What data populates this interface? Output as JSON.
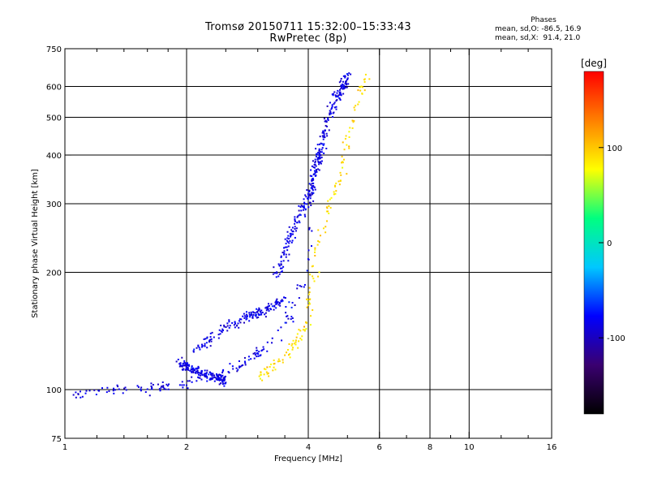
{
  "header": {
    "title_line1": "Tromsø 20150711 15:32:00–15:33:43",
    "title_line2": "RwPretec (8p)"
  },
  "phases": {
    "title": "Phases",
    "line_o": "mean, sd,O: -86.5, 16.9",
    "line_x": "mean, sd,X:  91.4, 21.0"
  },
  "colorbar": {
    "label": "[deg]",
    "ticks": [
      {
        "value": 100,
        "text": "100"
      },
      {
        "value": 0,
        "text": "0"
      },
      {
        "value": -100,
        "text": "-100"
      }
    ],
    "range": [
      -180,
      180
    ],
    "stops": [
      "#000000",
      "#3a0070",
      "#0000ff",
      "#00c8ff",
      "#00ff80",
      "#ffff00",
      "#ff8000",
      "#ff0000"
    ]
  },
  "chart_data": {
    "type": "scatter",
    "title": "Tromsø 20150711 15:32:00–15:33:43",
    "subtitle": "RwPretec (8p)",
    "xlabel": "Frequency [MHz]",
    "ylabel": "Stationary phase Virtual Height [km]",
    "x_scale": "log",
    "y_scale": "log",
    "xlim": [
      1,
      16
    ],
    "ylim": [
      75,
      750
    ],
    "x_ticks": [
      1,
      2,
      4,
      6,
      8,
      10,
      16
    ],
    "x_tick_labels": [
      "1",
      "2",
      "4",
      "6",
      "8",
      "10",
      "16"
    ],
    "x_minor_ticks": [
      1.2,
      1.4,
      1.6,
      1.8,
      2.5,
      3,
      3.5,
      5,
      7,
      9,
      12,
      14
    ],
    "y_ticks": [
      75,
      100,
      200,
      300,
      400,
      500,
      600,
      750
    ],
    "y_tick_labels": [
      "75",
      "100",
      "200",
      "300",
      "400",
      "500",
      "600",
      "750"
    ],
    "grid": true,
    "color_scale": "phase [deg], -180 to 180",
    "series": [
      {
        "name": "O",
        "phase_mean": -86.5,
        "phase_sd": 16.9,
        "traces": [
          {
            "x": [
              1.0,
              1.1,
              1.2,
              1.35,
              1.5,
              1.65,
              1.8,
              2.0,
              2.2,
              2.4,
              2.6,
              2.8,
              3.0,
              3.2,
              3.4,
              3.6,
              3.8,
              3.95,
              4.05
            ],
            "y": [
              97,
              98,
              99,
              100,
              101,
              101,
              102,
              104,
              106,
              109,
              113,
              118,
              124,
              130,
              140,
              155,
              175,
              205,
              260
            ]
          },
          {
            "x": [
              2.1,
              2.3,
              2.5,
              2.7,
              2.9,
              3.1,
              3.3,
              3.5
            ],
            "y": [
              125,
              135,
              145,
              150,
              155,
              160,
              165,
              170
            ]
          },
          {
            "x": [
              3.35,
              3.5,
              3.65,
              3.8,
              3.95,
              4.1,
              4.2,
              4.3
            ],
            "y": [
              195,
              225,
              255,
              280,
              300,
              340,
              380,
              420
            ]
          },
          {
            "x": [
              4.0,
              4.15,
              4.3,
              4.5,
              4.7,
              4.85,
              5.0
            ],
            "y": [
              300,
              350,
              420,
              500,
              560,
              600,
              640
            ]
          },
          {
            "x": [
              1.9,
              2.1,
              2.3,
              2.5
            ],
            "y": [
              118,
              112,
              108,
              106
            ]
          }
        ]
      },
      {
        "name": "X",
        "phase_mean": 91.4,
        "phase_sd": 21.0,
        "traces": [
          {
            "x": [
              3.0,
              3.2,
              3.4,
              3.6,
              3.8,
              3.95,
              4.05,
              4.2,
              4.4,
              4.6,
              4.8,
              5.0,
              5.2,
              5.4,
              5.6
            ],
            "y": [
              108,
              112,
              118,
              125,
              135,
              150,
              175,
              240,
              280,
              310,
              350,
              420,
              500,
              580,
              640
            ]
          }
        ]
      }
    ]
  }
}
